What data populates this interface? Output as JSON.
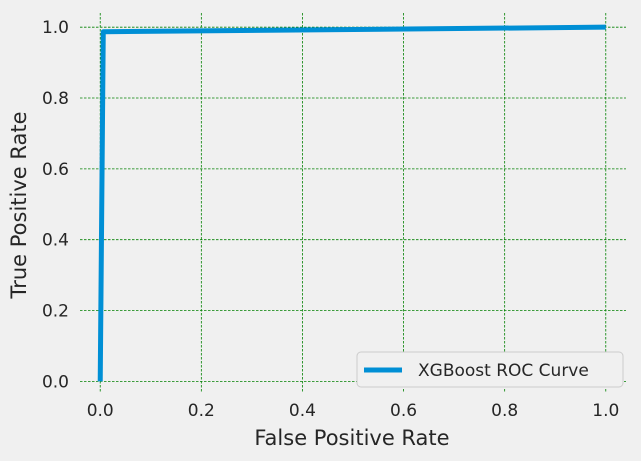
{
  "chart_data": {
    "type": "line",
    "title": "",
    "xlabel": "False Positive Rate",
    "ylabel": "True Positive Rate",
    "xlim": [
      -0.04,
      1.04
    ],
    "ylim": [
      -0.03,
      1.04
    ],
    "xticks": [
      0.0,
      0.2,
      0.4,
      0.6,
      0.8,
      1.0
    ],
    "xtick_labels": [
      "0.0",
      "0.2",
      "0.4",
      "0.6",
      "0.8",
      "1.0"
    ],
    "yticks": [
      0.0,
      0.2,
      0.4,
      0.6,
      0.8,
      1.0
    ],
    "ytick_labels": [
      "0.0",
      "0.2",
      "0.4",
      "0.6",
      "0.8",
      "1.0"
    ],
    "grid": true,
    "grid_color": "#008000",
    "background": "#f0f0f0",
    "legend_position": "lower right",
    "series": [
      {
        "name": "XGBoost ROC Curve",
        "color": "#008fd5",
        "x": [
          0.0,
          0.006,
          1.0
        ],
        "y": [
          0.0,
          0.987,
          1.0
        ]
      }
    ]
  }
}
